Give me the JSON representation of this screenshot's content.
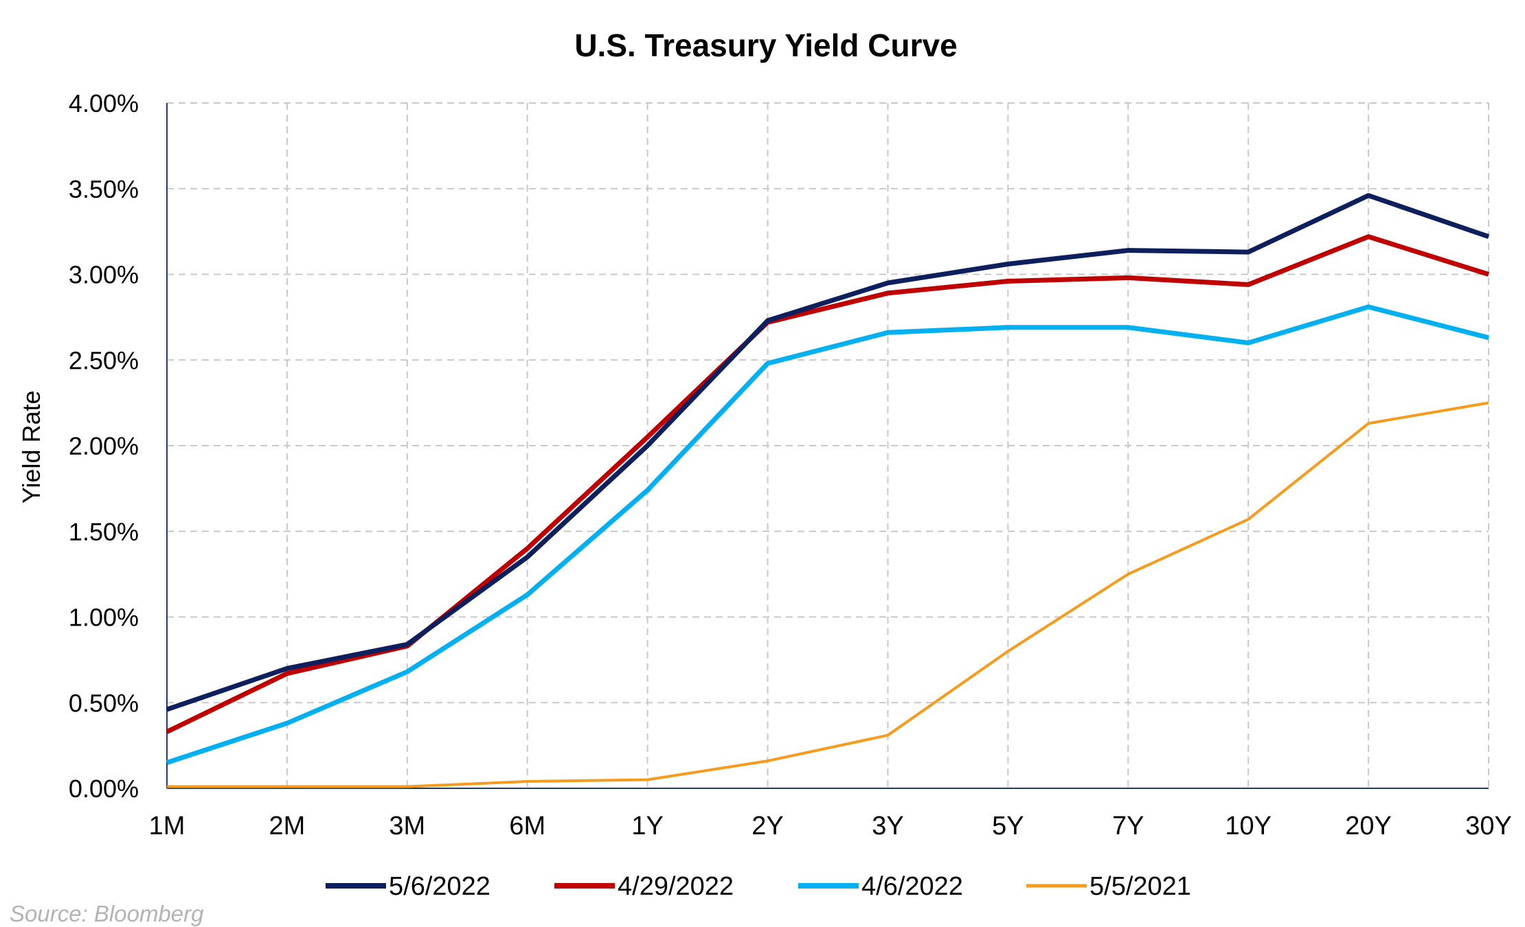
{
  "chart_data": {
    "type": "line",
    "title": "U.S. Treasury Yield Curve",
    "xlabel": "",
    "ylabel": "Yield Rate",
    "categories": [
      "1M",
      "2M",
      "3M",
      "6M",
      "1Y",
      "2Y",
      "3Y",
      "5Y",
      "7Y",
      "10Y",
      "20Y",
      "30Y"
    ],
    "ylim": [
      0,
      4
    ],
    "yticks": [
      {
        "value": 0,
        "label": "0.00%"
      },
      {
        "value": 0.5,
        "label": "0.50%"
      },
      {
        "value": 1,
        "label": "1.00%"
      },
      {
        "value": 1.5,
        "label": "1.50%"
      },
      {
        "value": 2,
        "label": "2.00%"
      },
      {
        "value": 2.5,
        "label": "2.50%"
      },
      {
        "value": 3,
        "label": "3.00%"
      },
      {
        "value": 3.5,
        "label": "3.50%"
      },
      {
        "value": 4,
        "label": "4.00%"
      }
    ],
    "grid": true,
    "legend_position": "bottom",
    "series": [
      {
        "name": "5/6/2022",
        "color": "#0d1f5c",
        "values": [
          0.46,
          0.7,
          0.84,
          1.35,
          2.0,
          2.73,
          2.95,
          3.06,
          3.14,
          3.13,
          3.46,
          3.22
        ]
      },
      {
        "name": "4/29/2022",
        "color": "#c00000",
        "values": [
          0.33,
          0.67,
          0.83,
          1.4,
          2.05,
          2.72,
          2.89,
          2.96,
          2.98,
          2.94,
          3.22,
          3.0
        ]
      },
      {
        "name": "4/6/2022",
        "color": "#00b0f0",
        "values": [
          0.15,
          0.38,
          0.68,
          1.13,
          1.74,
          2.48,
          2.66,
          2.69,
          2.69,
          2.6,
          2.81,
          2.63
        ]
      },
      {
        "name": "5/5/2021",
        "color": "#f79b1c",
        "values": [
          0.01,
          0.01,
          0.01,
          0.04,
          0.05,
          0.16,
          0.31,
          0.8,
          1.25,
          1.57,
          2.13,
          2.25
        ]
      }
    ]
  },
  "source_note": "Source: Bloomberg"
}
